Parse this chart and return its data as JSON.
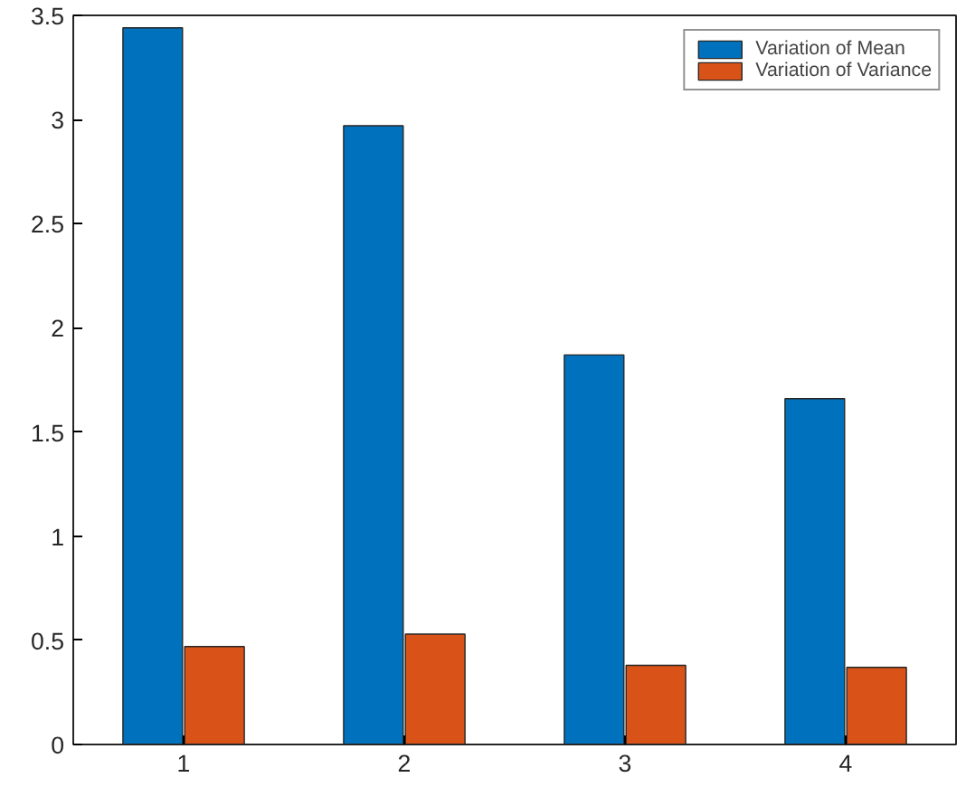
{
  "chart_data": {
    "type": "bar",
    "categories": [
      "1",
      "2",
      "3",
      "4"
    ],
    "series": [
      {
        "name": "Variation of Mean",
        "color": "#0072bd",
        "values": [
          3.44,
          2.97,
          1.87,
          1.66
        ]
      },
      {
        "name": "Variation of Variance",
        "color": "#d95319",
        "values": [
          0.47,
          0.53,
          0.38,
          0.37
        ]
      }
    ],
    "ylim": [
      0,
      3.5
    ],
    "yticks": [
      0,
      0.5,
      1,
      1.5,
      2,
      2.5,
      3,
      3.5
    ],
    "grid": false,
    "legend": "top right"
  }
}
